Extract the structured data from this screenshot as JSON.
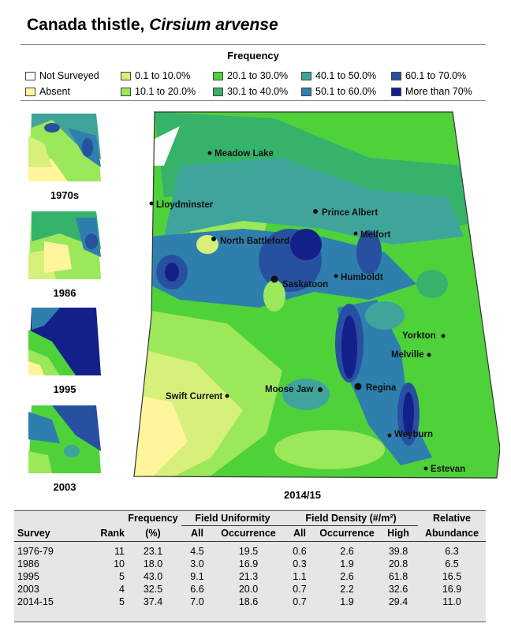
{
  "title": {
    "common": "Canada thistle,",
    "latin": "Cirsium arvense"
  },
  "legend": {
    "title": "Frequency",
    "items": [
      {
        "label": "Not Surveyed",
        "color": "#ffffff"
      },
      {
        "label": "Absent",
        "color": "#fff59d"
      },
      {
        "label": "0.1 to 10.0%",
        "color": "#d7f07c"
      },
      {
        "label": "10.1 to 20.0%",
        "color": "#9be85a"
      },
      {
        "label": "20.1 to 30.0%",
        "color": "#4fd13a"
      },
      {
        "label": "30.1 to 40.0%",
        "color": "#35b36a"
      },
      {
        "label": "40.1 to 50.0%",
        "color": "#3fa59c"
      },
      {
        "label": "50.1 to 60.0%",
        "color": "#2f7fae"
      },
      {
        "label": "60.1 to 70.0%",
        "color": "#2750a0"
      },
      {
        "label": "More than 70%",
        "color": "#14208a"
      }
    ]
  },
  "thumbnails": [
    "1970s",
    "1986",
    "1995",
    "2003"
  ],
  "main_map": {
    "label": "2014/15",
    "cities": [
      "Meadow Lake",
      "Lloydminster",
      "Prince Albert",
      "Melfort",
      "North Battleford",
      "Humboldt",
      "Saskatoon",
      "Yorkton",
      "Melville",
      "Moose Jaw",
      "Regina",
      "Swift Current",
      "Weyburn",
      "Estevan"
    ]
  },
  "table": {
    "header_groups": {
      "frequency": "Frequency",
      "field_uniformity": "Field Uniformity",
      "field_density": "Field Density (#/m²)",
      "relative": "Relative"
    },
    "columns": [
      "Survey",
      "Rank",
      "(%)",
      "All",
      "Occurrence",
      "All",
      "Occurrence",
      "High",
      "Abundance"
    ],
    "rows": [
      [
        "1976-79",
        "11",
        "23.1",
        "4.5",
        "19.5",
        "0.6",
        "2.6",
        "39.8",
        "6.3"
      ],
      [
        "1986",
        "10",
        "18.0",
        "3.0",
        "16.9",
        "0.3",
        "1.9",
        "20.8",
        "6.5"
      ],
      [
        "1995",
        "5",
        "43.0",
        "9.1",
        "21.3",
        "1.1",
        "2.6",
        "61.8",
        "16.5"
      ],
      [
        "2003",
        "4",
        "32.5",
        "6.6",
        "20.0",
        "0.7",
        "2.2",
        "32.6",
        "16.9"
      ],
      [
        "2014-15",
        "5",
        "37.4",
        "7.0",
        "18.6",
        "0.7",
        "1.9",
        "29.4",
        "11.0"
      ]
    ]
  }
}
